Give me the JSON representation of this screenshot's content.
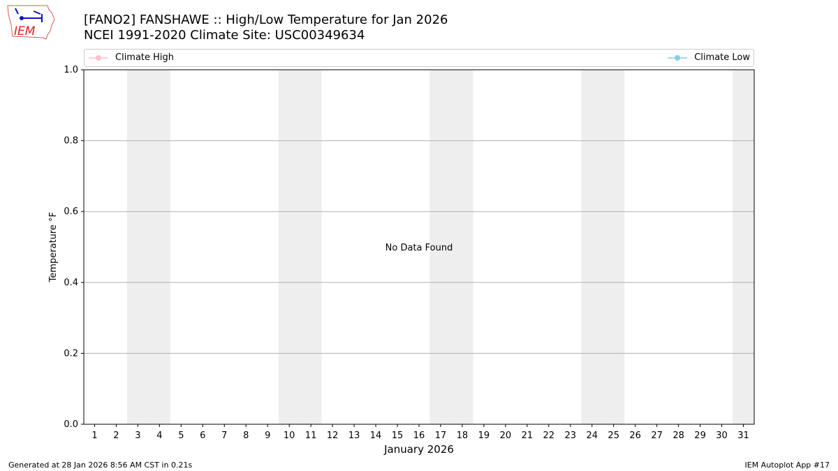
{
  "header": {
    "title_line1": "[FANO2] FANSHAWE :: High/Low Temperature for Jan 2026",
    "title_line2": "NCEI 1991-2020 Climate Site: USC00349634",
    "logo_text": "IEM"
  },
  "footer": {
    "left": "Generated at 28 Jan 2026 8:56 AM CST in 0.21s",
    "right": "IEM Autoplot App #17"
  },
  "chart_data": {
    "type": "line",
    "xlabel": "January 2026",
    "ylabel": "Temperature °F",
    "xlim": [
      0.5,
      31.5
    ],
    "ylim": [
      0,
      1
    ],
    "x_ticks": [
      "1",
      "2",
      "3",
      "4",
      "5",
      "6",
      "7",
      "8",
      "9",
      "10",
      "11",
      "12",
      "13",
      "14",
      "15",
      "16",
      "17",
      "18",
      "19",
      "20",
      "21",
      "22",
      "23",
      "24",
      "25",
      "26",
      "27",
      "28",
      "29",
      "30",
      "31"
    ],
    "y_ticks": [
      "0.0",
      "0.2",
      "0.4",
      "0.6",
      "0.8",
      "1.0"
    ],
    "grid": "horizontal",
    "weekend_shading": [
      [
        2.5,
        4.5
      ],
      [
        9.5,
        11.5
      ],
      [
        16.5,
        18.5
      ],
      [
        23.5,
        25.5
      ],
      [
        30.5,
        31.5
      ]
    ],
    "annotation": "No Data Found",
    "series": [
      {
        "name": "Climate High",
        "color": "#ffc0cb",
        "values": []
      },
      {
        "name": "Climate Low",
        "color": "#87ceeb",
        "values": []
      }
    ],
    "legend": "top"
  }
}
